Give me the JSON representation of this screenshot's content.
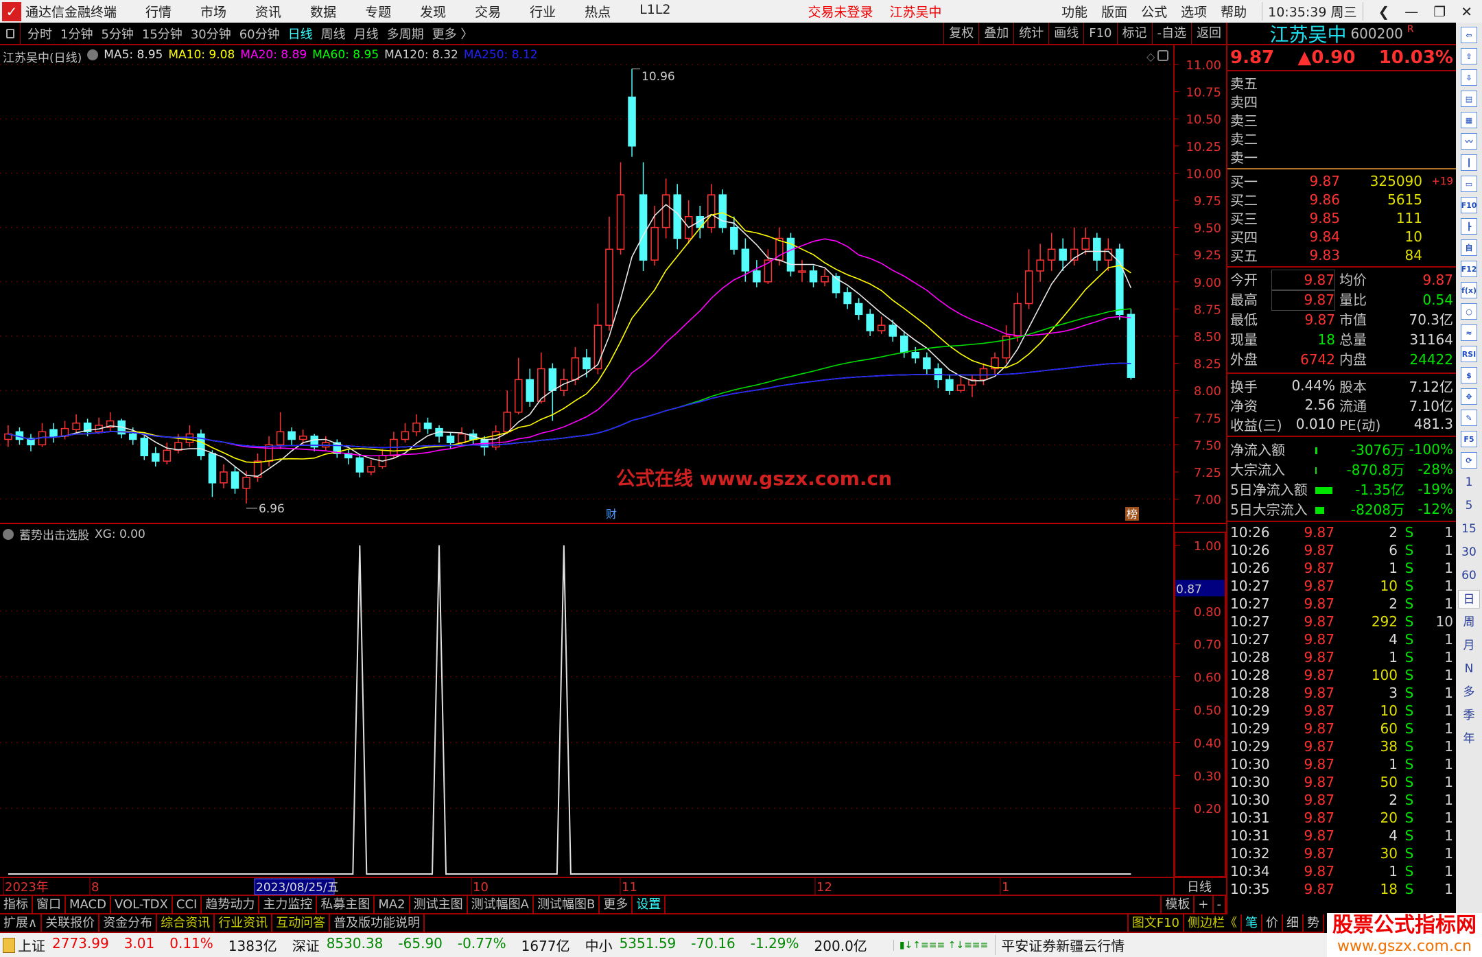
{
  "titlebar": {
    "app": "通达信金融终端",
    "menus": [
      "行情",
      "市场",
      "资讯",
      "数据",
      "专题",
      "发现",
      "交易",
      "行业",
      "热点",
      "L1L2"
    ],
    "login_status": "交易未登录",
    "stock": "江苏吴中",
    "right_menus": [
      "功能",
      "版面",
      "公式",
      "选项",
      "帮助"
    ],
    "time": "10:35:39",
    "weekday": "周三",
    "window_controls": [
      "back",
      "minimize",
      "restore",
      "close"
    ]
  },
  "toolbar": {
    "periods": [
      "分时",
      "1分钟",
      "5分钟",
      "15分钟",
      "30分钟",
      "60分钟",
      "日线",
      "周线",
      "月线",
      "多周期",
      "更多 〉"
    ],
    "active_period": "日线",
    "buttons": [
      "复权",
      "叠加",
      "统计",
      "画线",
      "F10",
      "标记",
      "-自选",
      "返回"
    ]
  },
  "infoline": {
    "title": "江苏吴中(日线)",
    "ma": [
      {
        "label": "MA5: 8.95",
        "color": "#e0e0e0"
      },
      {
        "label": "MA10: 9.08",
        "color": "#ffff00"
      },
      {
        "label": "MA20: 8.89",
        "color": "#ff00ff"
      },
      {
        "label": "MA60: 8.95",
        "color": "#00ff00"
      },
      {
        "label": "MA120: 8.32",
        "color": "#d0d0d0"
      },
      {
        "label": "MA250: 8.12",
        "color": "#2020ff"
      }
    ]
  },
  "indicator": {
    "title": "蓄势出击选股",
    "value": "XG: 0.00",
    "cursor_value": "0.87"
  },
  "chart_data": [
    {
      "type": "candlestick",
      "ylim": [
        6.9,
        11.0
      ],
      "yticks": [
        "11.00",
        "10.75",
        "10.50",
        "10.25",
        "10.00",
        "9.75",
        "9.50",
        "9.25",
        "9.00",
        "8.75",
        "8.50",
        "8.25",
        "8.00",
        "7.75",
        "7.50",
        "7.25",
        "7.00"
      ],
      "annotations": {
        "high": "10.96",
        "low": "6.96",
        "markers": [
          "财",
          "榜"
        ]
      },
      "candles": [
        [
          7.55,
          7.68,
          7.48,
          7.6
        ],
        [
          7.62,
          7.66,
          7.5,
          7.55
        ],
        [
          7.56,
          7.6,
          7.44,
          7.5
        ],
        [
          7.5,
          7.7,
          7.48,
          7.62
        ],
        [
          7.64,
          7.7,
          7.52,
          7.58
        ],
        [
          7.58,
          7.72,
          7.55,
          7.65
        ],
        [
          7.64,
          7.78,
          7.6,
          7.7
        ],
        [
          7.7,
          7.74,
          7.58,
          7.62
        ],
        [
          7.62,
          7.75,
          7.6,
          7.68
        ],
        [
          7.66,
          7.8,
          7.62,
          7.72
        ],
        [
          7.72,
          7.74,
          7.56,
          7.6
        ],
        [
          7.6,
          7.66,
          7.5,
          7.55
        ],
        [
          7.56,
          7.58,
          7.36,
          7.4
        ],
        [
          7.42,
          7.48,
          7.3,
          7.35
        ],
        [
          7.35,
          7.52,
          7.32,
          7.45
        ],
        [
          7.45,
          7.6,
          7.42,
          7.52
        ],
        [
          7.52,
          7.68,
          7.48,
          7.6
        ],
        [
          7.6,
          7.64,
          7.36,
          7.4
        ],
        [
          7.42,
          7.45,
          7.02,
          7.15
        ],
        [
          7.15,
          7.32,
          7.1,
          7.25
        ],
        [
          7.25,
          7.3,
          7.05,
          7.1
        ],
        [
          7.1,
          7.26,
          6.96,
          7.2
        ],
        [
          7.2,
          7.42,
          7.16,
          7.35
        ],
        [
          7.35,
          7.58,
          7.3,
          7.5
        ],
        [
          7.5,
          7.8,
          7.46,
          7.62
        ],
        [
          7.62,
          7.66,
          7.5,
          7.55
        ],
        [
          7.55,
          7.64,
          7.5,
          7.58
        ],
        [
          7.58,
          7.6,
          7.44,
          7.48
        ],
        [
          7.48,
          7.58,
          7.44,
          7.52
        ],
        [
          7.52,
          7.55,
          7.38,
          7.42
        ],
        [
          7.42,
          7.46,
          7.32,
          7.38
        ],
        [
          7.38,
          7.4,
          7.2,
          7.25
        ],
        [
          7.25,
          7.36,
          7.22,
          7.3
        ],
        [
          7.3,
          7.46,
          7.28,
          7.4
        ],
        [
          7.4,
          7.62,
          7.38,
          7.55
        ],
        [
          7.55,
          7.7,
          7.52,
          7.62
        ],
        [
          7.62,
          7.78,
          7.58,
          7.7
        ],
        [
          7.7,
          7.75,
          7.6,
          7.65
        ],
        [
          7.65,
          7.68,
          7.52,
          7.58
        ],
        [
          7.58,
          7.62,
          7.46,
          7.52
        ],
        [
          7.52,
          7.66,
          7.5,
          7.6
        ],
        [
          7.6,
          7.64,
          7.5,
          7.55
        ],
        [
          7.55,
          7.58,
          7.4,
          7.48
        ],
        [
          7.48,
          7.68,
          7.45,
          7.62
        ],
        [
          7.62,
          8.0,
          7.6,
          7.8
        ],
        [
          7.8,
          8.3,
          7.78,
          8.1
        ],
        [
          8.1,
          8.2,
          7.85,
          7.9
        ],
        [
          7.9,
          8.35,
          7.88,
          8.2
        ],
        [
          8.2,
          8.25,
          7.72,
          8.0
        ],
        [
          8.0,
          8.2,
          7.95,
          8.1
        ],
        [
          8.1,
          8.4,
          8.05,
          8.3
        ],
        [
          8.3,
          8.38,
          8.12,
          8.2
        ],
        [
          8.2,
          8.8,
          8.15,
          8.6
        ],
        [
          8.6,
          9.6,
          8.55,
          9.3
        ],
        [
          9.3,
          10.1,
          9.25,
          9.8
        ],
        [
          10.7,
          10.96,
          10.15,
          10.25
        ],
        [
          9.8,
          10.1,
          9.1,
          9.2
        ],
        [
          9.2,
          9.7,
          9.15,
          9.5
        ],
        [
          9.5,
          9.95,
          9.4,
          9.8
        ],
        [
          9.8,
          9.9,
          9.3,
          9.4
        ],
        [
          9.4,
          9.75,
          9.35,
          9.6
        ],
        [
          9.6,
          9.7,
          9.4,
          9.5
        ],
        [
          9.5,
          9.9,
          9.45,
          9.8
        ],
        [
          9.8,
          9.85,
          9.45,
          9.5
        ],
        [
          9.5,
          9.6,
          9.25,
          9.3
        ],
        [
          9.3,
          9.4,
          9.0,
          9.1
        ],
        [
          9.1,
          9.2,
          8.95,
          9.0
        ],
        [
          9.0,
          9.3,
          8.98,
          9.2
        ],
        [
          9.2,
          9.5,
          9.15,
          9.4
        ],
        [
          9.4,
          9.45,
          9.05,
          9.1
        ],
        [
          9.1,
          9.2,
          9.0,
          9.1
        ],
        [
          9.1,
          9.15,
          8.95,
          9.0
        ],
        [
          9.0,
          9.12,
          8.96,
          9.05
        ],
        [
          9.05,
          9.08,
          8.85,
          8.9
        ],
        [
          8.9,
          8.95,
          8.75,
          8.8
        ],
        [
          8.8,
          8.85,
          8.65,
          8.7
        ],
        [
          8.7,
          8.75,
          8.5,
          8.55
        ],
        [
          8.55,
          8.68,
          8.52,
          8.6
        ],
        [
          8.6,
          8.65,
          8.45,
          8.5
        ],
        [
          8.5,
          8.55,
          8.3,
          8.35
        ],
        [
          8.35,
          8.4,
          8.25,
          8.3
        ],
        [
          8.3,
          8.35,
          8.15,
          8.2
        ],
        [
          8.2,
          8.25,
          8.02,
          8.1
        ],
        [
          8.1,
          8.15,
          7.96,
          8.0
        ],
        [
          8.0,
          8.12,
          7.98,
          8.05
        ],
        [
          8.05,
          8.15,
          7.94,
          8.1
        ],
        [
          8.1,
          8.25,
          8.05,
          8.2
        ],
        [
          8.2,
          8.35,
          8.15,
          8.3
        ],
        [
          8.3,
          8.6,
          8.25,
          8.5
        ],
        [
          8.5,
          8.9,
          8.45,
          8.8
        ],
        [
          8.8,
          9.3,
          8.75,
          9.1
        ],
        [
          9.1,
          9.35,
          9.0,
          9.2
        ],
        [
          9.2,
          9.45,
          9.1,
          9.3
        ],
        [
          9.3,
          9.4,
          9.1,
          9.2
        ],
        [
          9.2,
          9.5,
          9.15,
          9.3
        ],
        [
          9.3,
          9.5,
          9.25,
          9.4
        ],
        [
          9.4,
          9.45,
          9.1,
          9.2
        ],
        [
          9.2,
          9.4,
          9.1,
          9.3
        ],
        [
          9.3,
          9.35,
          8.65,
          8.7
        ],
        [
          8.7,
          8.75,
          8.1,
          8.12
        ]
      ],
      "ma_periods": [
        5,
        10,
        20,
        60,
        120,
        250
      ],
      "ma_colors": [
        "#e8e8e8",
        "#ffff00",
        "#ff00ff",
        "#00e000",
        "#d0d0d0",
        "#2020ff"
      ],
      "up_color": "#ff3232",
      "down_color": "#54fcfc"
    },
    {
      "type": "line",
      "name": "XG",
      "ylim": [
        0,
        1.1
      ],
      "yticks": [
        "1.00",
        "0.80",
        "0.70",
        "0.60",
        "0.50",
        "0.40",
        "0.30",
        "0.20"
      ],
      "signal_indices": [
        31,
        38,
        49
      ],
      "candle_count": 100,
      "color": "#e0e0e0"
    }
  ],
  "date_axis": {
    "labels": [
      "2023年",
      "8",
      "10",
      "11",
      "12",
      "1"
    ],
    "cursor_date": "2023/08/25/五",
    "period": "日线"
  },
  "quote": {
    "name": "江苏吴中",
    "code": "600200",
    "flag": "R",
    "price": "9.87",
    "change": "▲0.90",
    "pct": "10.03%",
    "asks": [
      {
        "label": "卖五"
      },
      {
        "label": "卖四"
      },
      {
        "label": "卖三"
      },
      {
        "label": "卖二"
      },
      {
        "label": "卖一"
      }
    ],
    "bids": [
      {
        "label": "买一",
        "price": "9.87",
        "vol": "325090",
        "chg": "+19"
      },
      {
        "label": "买二",
        "price": "9.86",
        "vol": "5615",
        "chg": ""
      },
      {
        "label": "买三",
        "price": "9.85",
        "vol": "111",
        "chg": ""
      },
      {
        "label": "买四",
        "price": "9.84",
        "vol": "10",
        "chg": ""
      },
      {
        "label": "买五",
        "price": "9.83",
        "vol": "84",
        "chg": ""
      }
    ],
    "stats": [
      {
        "l1": "今开",
        "v1": "9.87",
        "c1": "red",
        "l2": "均价",
        "v2": "9.87",
        "c2": "red"
      },
      {
        "l1": "最高",
        "v1": "9.87",
        "c1": "red",
        "l2": "量比",
        "v2": "0.54",
        "c2": "grn"
      },
      {
        "l1": "最低",
        "v1": "9.87",
        "c1": "red",
        "l2": "市值",
        "v2": "70.3亿",
        "c2": "wht"
      },
      {
        "l1": "现量",
        "v1": "18",
        "c1": "grn",
        "l2": "总量",
        "v2": "31164",
        "c2": "wht"
      },
      {
        "l1": "外盘",
        "v1": "6742",
        "c1": "red",
        "l2": "内盘",
        "v2": "24422",
        "c2": "grn"
      }
    ],
    "fund": [
      {
        "l1": "换手",
        "v1": "0.44%",
        "l2": "股本",
        "v2": "7.12亿"
      },
      {
        "l1": "净资",
        "v1": "2.56",
        "l2": "流通",
        "v2": "7.10亿"
      },
      {
        "l1": "收益(三)",
        "v1": "0.010",
        "l2": "PE(动)",
        "v2": "481.3"
      }
    ],
    "flows": [
      {
        "label": "净流入额",
        "bar": 0.1,
        "v1": "-3076万",
        "v2": "-100%"
      },
      {
        "label": "大宗流入",
        "bar": 0.02,
        "v1": "-870.8万",
        "v2": "-28%"
      },
      {
        "label": "5日净流入额",
        "bar": 0.95,
        "v1": "-1.35亿",
        "v2": "-19%"
      },
      {
        "label": "5日大宗流入",
        "bar": 0.5,
        "v1": "-8208万",
        "v2": "-12%"
      }
    ],
    "ticks": [
      [
        "10:26",
        "9.87",
        "2",
        "S",
        "1"
      ],
      [
        "10:26",
        "9.87",
        "6",
        "S",
        "1"
      ],
      [
        "10:26",
        "9.87",
        "1",
        "S",
        "1"
      ],
      [
        "10:27",
        "9.87",
        "10",
        "S",
        "1"
      ],
      [
        "10:27",
        "9.87",
        "2",
        "S",
        "1"
      ],
      [
        "10:27",
        "9.87",
        "292",
        "S",
        "10"
      ],
      [
        "10:27",
        "9.87",
        "4",
        "S",
        "1"
      ],
      [
        "10:28",
        "9.87",
        "1",
        "S",
        "1"
      ],
      [
        "10:28",
        "9.87",
        "100",
        "S",
        "1"
      ],
      [
        "10:28",
        "9.87",
        "3",
        "S",
        "1"
      ],
      [
        "10:29",
        "9.87",
        "10",
        "S",
        "1"
      ],
      [
        "10:29",
        "9.87",
        "60",
        "S",
        "1"
      ],
      [
        "10:29",
        "9.87",
        "38",
        "S",
        "1"
      ],
      [
        "10:30",
        "9.87",
        "1",
        "S",
        "1"
      ],
      [
        "10:30",
        "9.87",
        "50",
        "S",
        "1"
      ],
      [
        "10:30",
        "9.87",
        "2",
        "S",
        "1"
      ],
      [
        "10:31",
        "9.87",
        "20",
        "S",
        "1"
      ],
      [
        "10:31",
        "9.87",
        "4",
        "S",
        "1"
      ],
      [
        "10:32",
        "9.87",
        "30",
        "S",
        "1"
      ],
      [
        "10:34",
        "9.87",
        "1",
        "S",
        "1"
      ],
      [
        "10:35",
        "9.87",
        "18",
        "S",
        "1"
      ]
    ]
  },
  "sidebar": {
    "icons": [
      "arrow-left-icon",
      "arrow-up-icon",
      "arrow-down-icon",
      "quote-list-icon",
      "grid-icon",
      "line-chart-icon",
      "candle-icon",
      "window-icon",
      "f10-icon",
      "tree-icon",
      "news-icon",
      "f12-icon",
      "formula-icon",
      "circle-icon",
      "wave-icon",
      "rsi-icon",
      "dollar-icon",
      "move-icon",
      "pencil-icon",
      "f5-icon",
      "refresh-icon"
    ],
    "icon_text": [
      "⇦",
      "⇧",
      "⇩",
      "▤",
      "▦",
      "〰",
      "┃",
      "▭",
      "F10",
      "┣",
      "自",
      "F12",
      "f(x)",
      "○",
      "≈",
      "RSI",
      "$",
      "✥",
      "✎",
      "F5",
      "⟳"
    ],
    "periods": [
      "1",
      "5",
      "15",
      "30",
      "60",
      "日",
      "周",
      "月",
      "N",
      "多",
      "季",
      "年"
    ],
    "active": "日"
  },
  "bottom_tabs": {
    "row1": [
      "指标",
      "窗口",
      "MACD",
      "VOL-TDX",
      "CCI",
      "趋势动力",
      "主力监控",
      "私募主图",
      "MA2",
      "测试主图",
      "测试幅图A",
      "测试幅图B",
      "更多",
      "设置"
    ],
    "row1_right": [
      "模板",
      "+",
      "-"
    ],
    "row2": [
      "扩展∧",
      "关联报价",
      "资金分布",
      "综合资讯",
      "行业资讯",
      "互动问答",
      "普及版功能说明"
    ],
    "row2_yellow": [
      3,
      4,
      5
    ],
    "row2_right": [
      "图文F10",
      "侧边栏《",
      "笔",
      "价",
      "细",
      "势"
    ]
  },
  "status": {
    "items": [
      {
        "name": "上证",
        "v": "2773.99",
        "c": "3.01",
        "p": "0.11%",
        "amt": "1383亿",
        "col": "sr"
      },
      {
        "name": "深证",
        "v": "8530.38",
        "c": "-65.90",
        "p": "-0.77%",
        "amt": "1677亿",
        "col": "sg"
      },
      {
        "name": "中小",
        "v": "5351.59",
        "c": "-70.16",
        "p": "-1.29%",
        "amt": "200.0亿",
        "col": "sg"
      }
    ],
    "server": "平安证券新疆云行情"
  },
  "watermarks": {
    "center": "公式在线  www.gszx.com.cn",
    "logo_title": "股票公式指标网",
    "logo_url": "www.gszx.com.cn"
  }
}
